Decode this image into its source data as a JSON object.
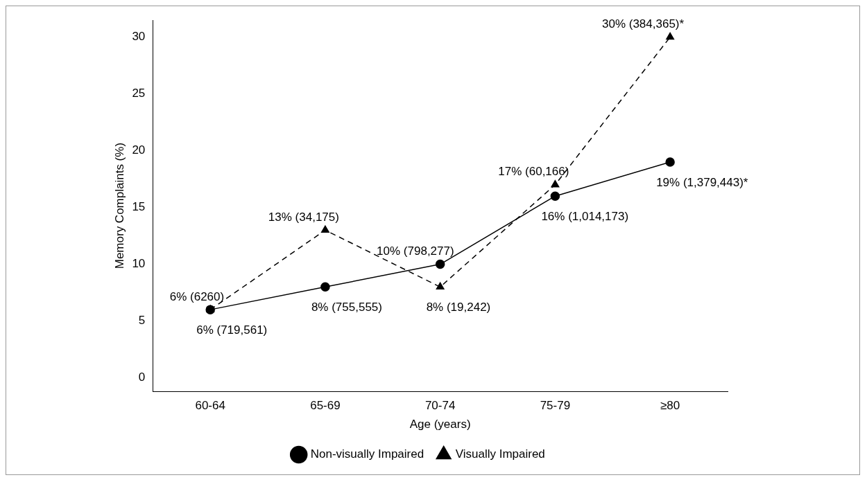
{
  "chart_data": {
    "type": "line",
    "xlabel": "Age (years)",
    "ylabel": "Memory Complaints (%)",
    "categories": [
      "60-64",
      "65-69",
      "70-74",
      "75-79",
      "≥80"
    ],
    "ylim": [
      -1.2,
      31.5
    ],
    "yticks": [
      0,
      5,
      10,
      15,
      20,
      25,
      30
    ],
    "grid": false,
    "legend": "bottom",
    "series": [
      {
        "name": "Non-visually Impaired",
        "color": "#000000",
        "marker": "circle",
        "line_style": "solid",
        "values": [
          6,
          8,
          10,
          16,
          19
        ],
        "value_labels": [
          "6% (719,561)",
          "8% (755,555)",
          "10% (798,277)",
          "16% (1,014,173)",
          "19% (1,379,443)*"
        ]
      },
      {
        "name": "Visually Impaired",
        "color": "#000000",
        "marker": "triangle",
        "line_style": "dashed",
        "values": [
          6,
          13,
          8,
          17,
          30
        ],
        "value_labels": [
          "6% (6260)",
          "13% (34,175)",
          "8% (19,242)",
          "17% (60,166)",
          "30% (384,365)*"
        ]
      }
    ]
  }
}
